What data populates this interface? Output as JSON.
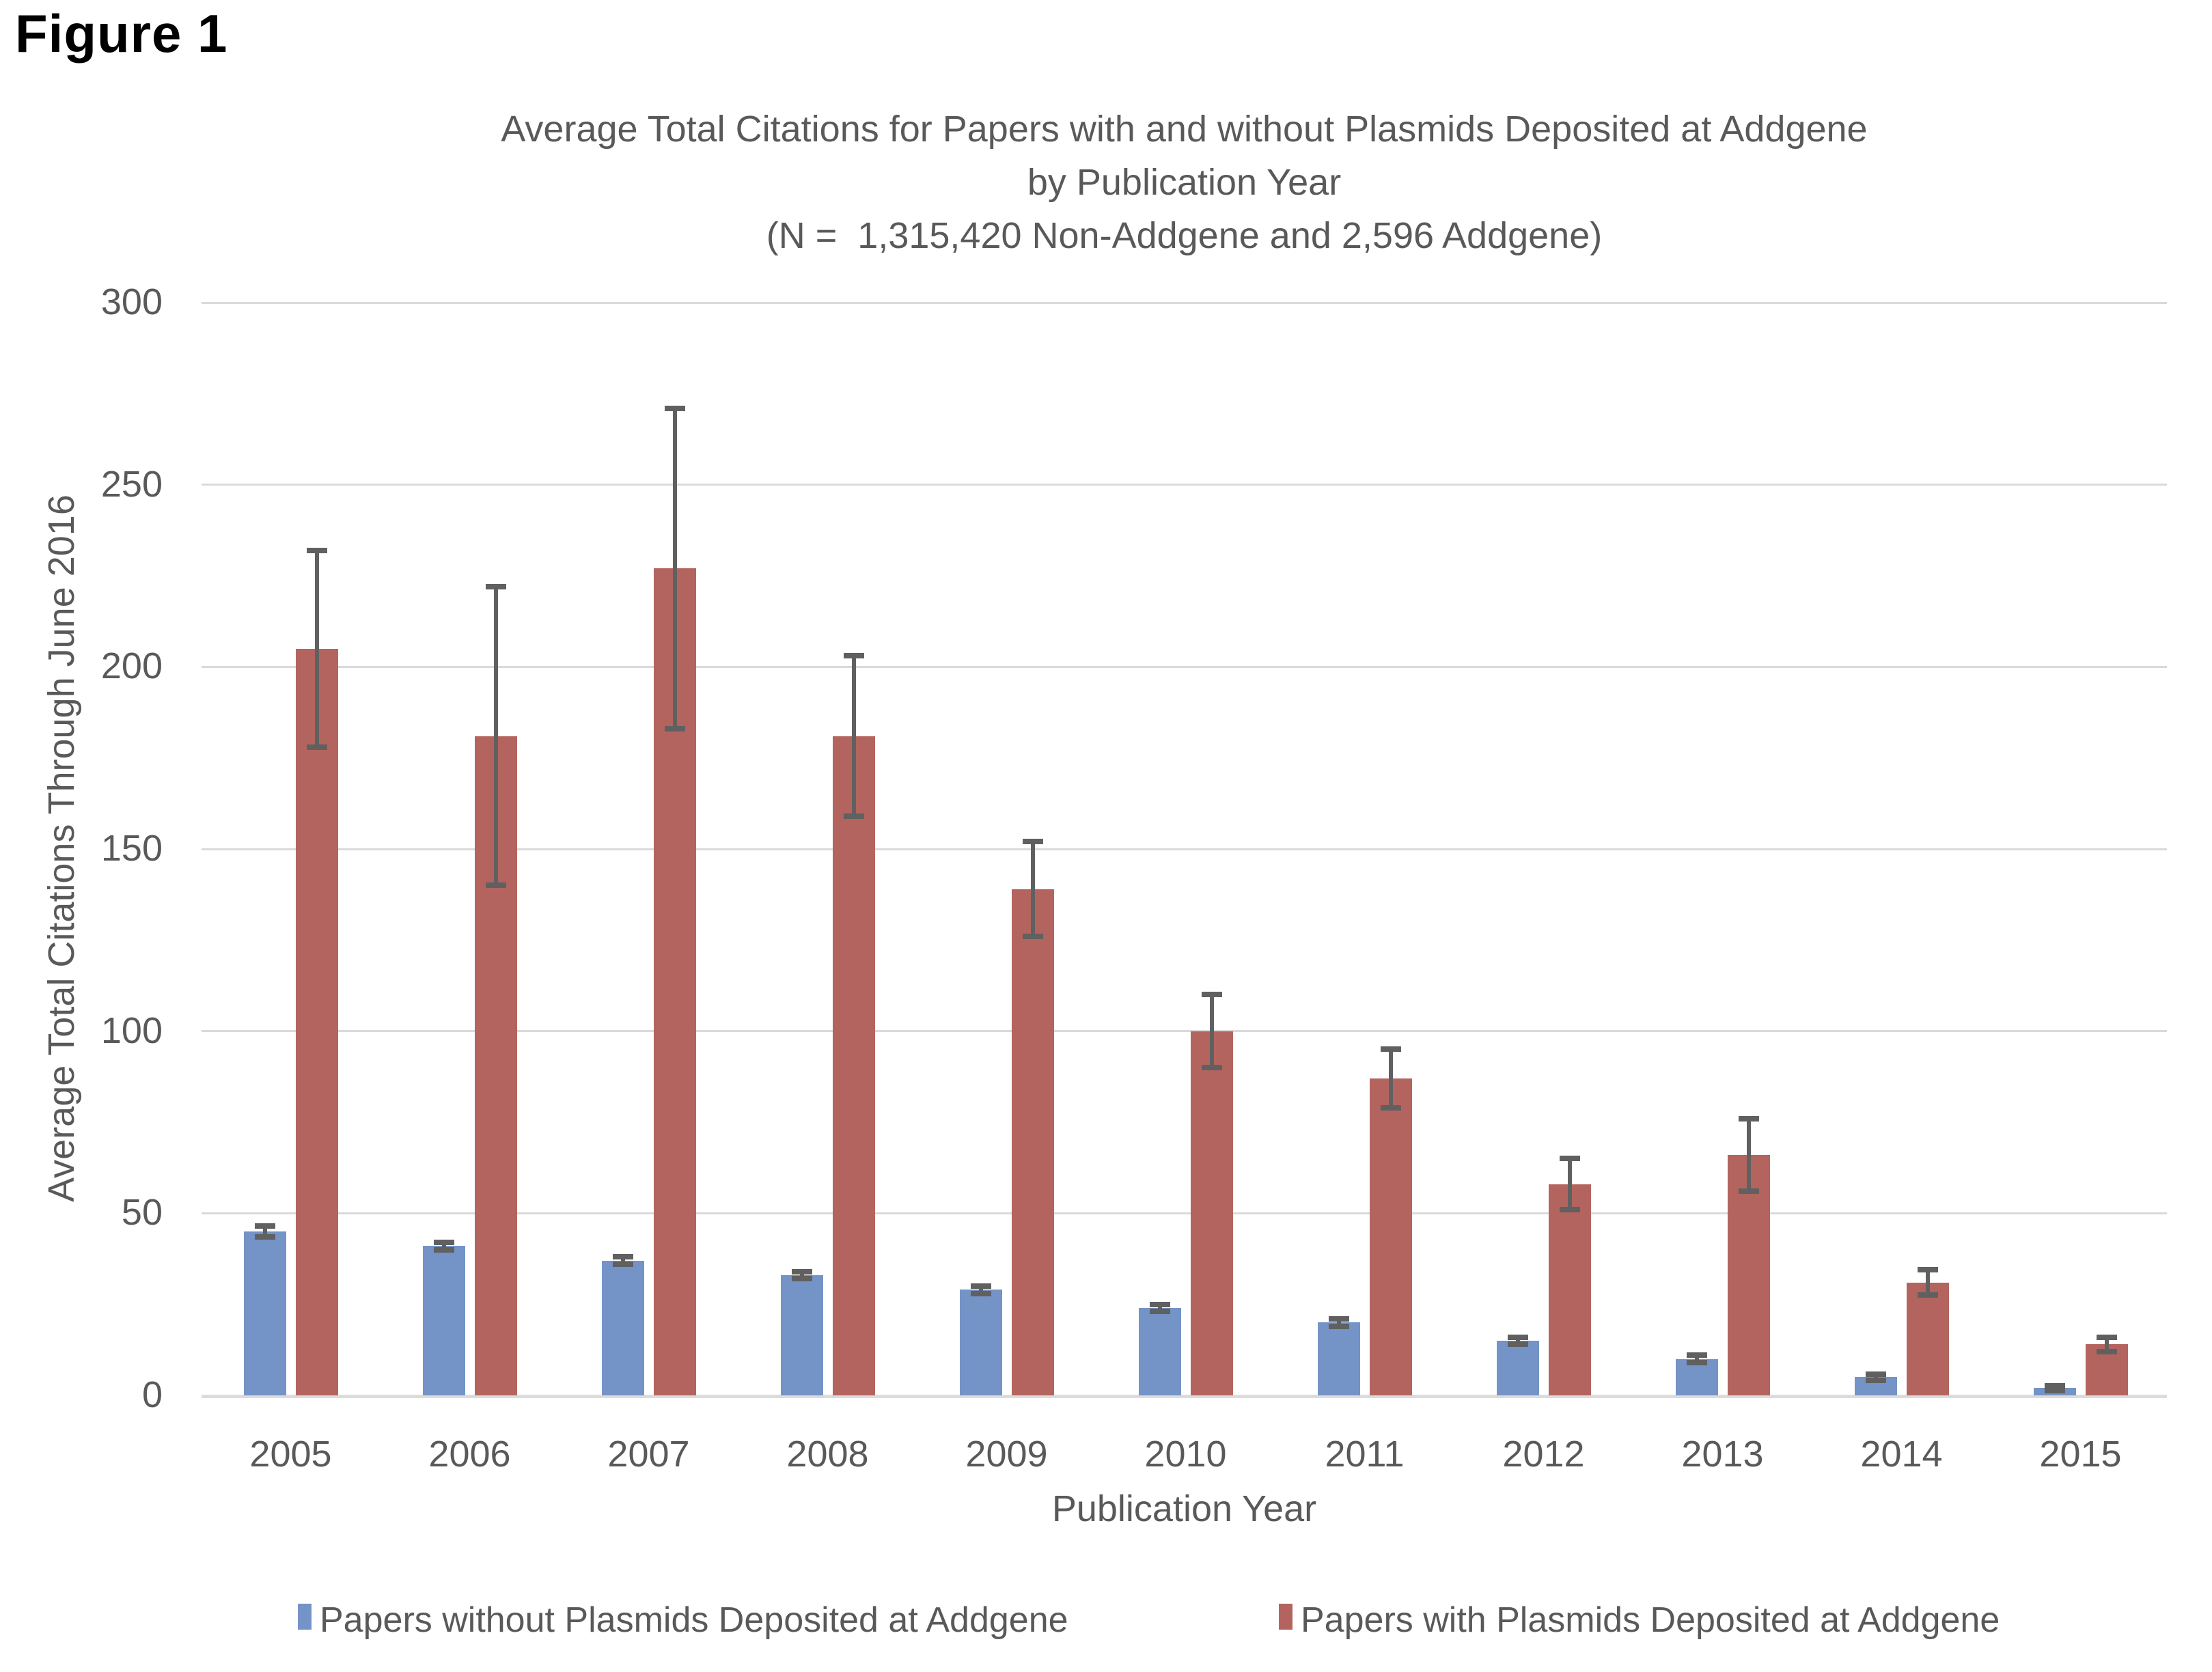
{
  "figure_label": "Figure 1",
  "chart_data": {
    "type": "bar",
    "title": "Average Total Citations for Papers with and without Plasmids Deposited at Addgene by Publication Year (N = 1,315,420 Non-Addgene and 2,596 Addgene)",
    "title_lines": [
      "Average Total Citations for Papers with and without Plasmids Deposited at Addgene",
      "by Publication Year",
      "(N =  1,315,420 Non-Addgene and 2,596 Addgene)"
    ],
    "xlabel": "Publication Year",
    "ylabel": "Average Total Citations Through June 2016",
    "categories": [
      "2005",
      "2006",
      "2007",
      "2008",
      "2009",
      "2010",
      "2011",
      "2012",
      "2013",
      "2014",
      "2015"
    ],
    "series": [
      {
        "name": "Papers without Plasmids Deposited at Addgene",
        "color": "#7493C6",
        "values": [
          45,
          41,
          37,
          33,
          29,
          24,
          20,
          15,
          10,
          5,
          2
        ],
        "errors": [
          1.5,
          1,
          1,
          1,
          1,
          1,
          1,
          1,
          1,
          0.8,
          0.6
        ]
      },
      {
        "name": "Papers with Plasmids Deposited at Addgene",
        "color": "#B4645E",
        "values": [
          205,
          181,
          227,
          181,
          139,
          100,
          87,
          58,
          66,
          31,
          14
        ],
        "errors": [
          27,
          41,
          44,
          22,
          13,
          10,
          8,
          7,
          10,
          3.5,
          2
        ]
      }
    ],
    "ylim": [
      0,
      300
    ],
    "yticks": [
      0,
      50,
      100,
      150,
      200,
      250,
      300
    ],
    "grid": true,
    "legend_position": "bottom",
    "colors": {
      "text": "#595959",
      "gridline": "#DADADA",
      "error_bar": "#606060"
    }
  }
}
